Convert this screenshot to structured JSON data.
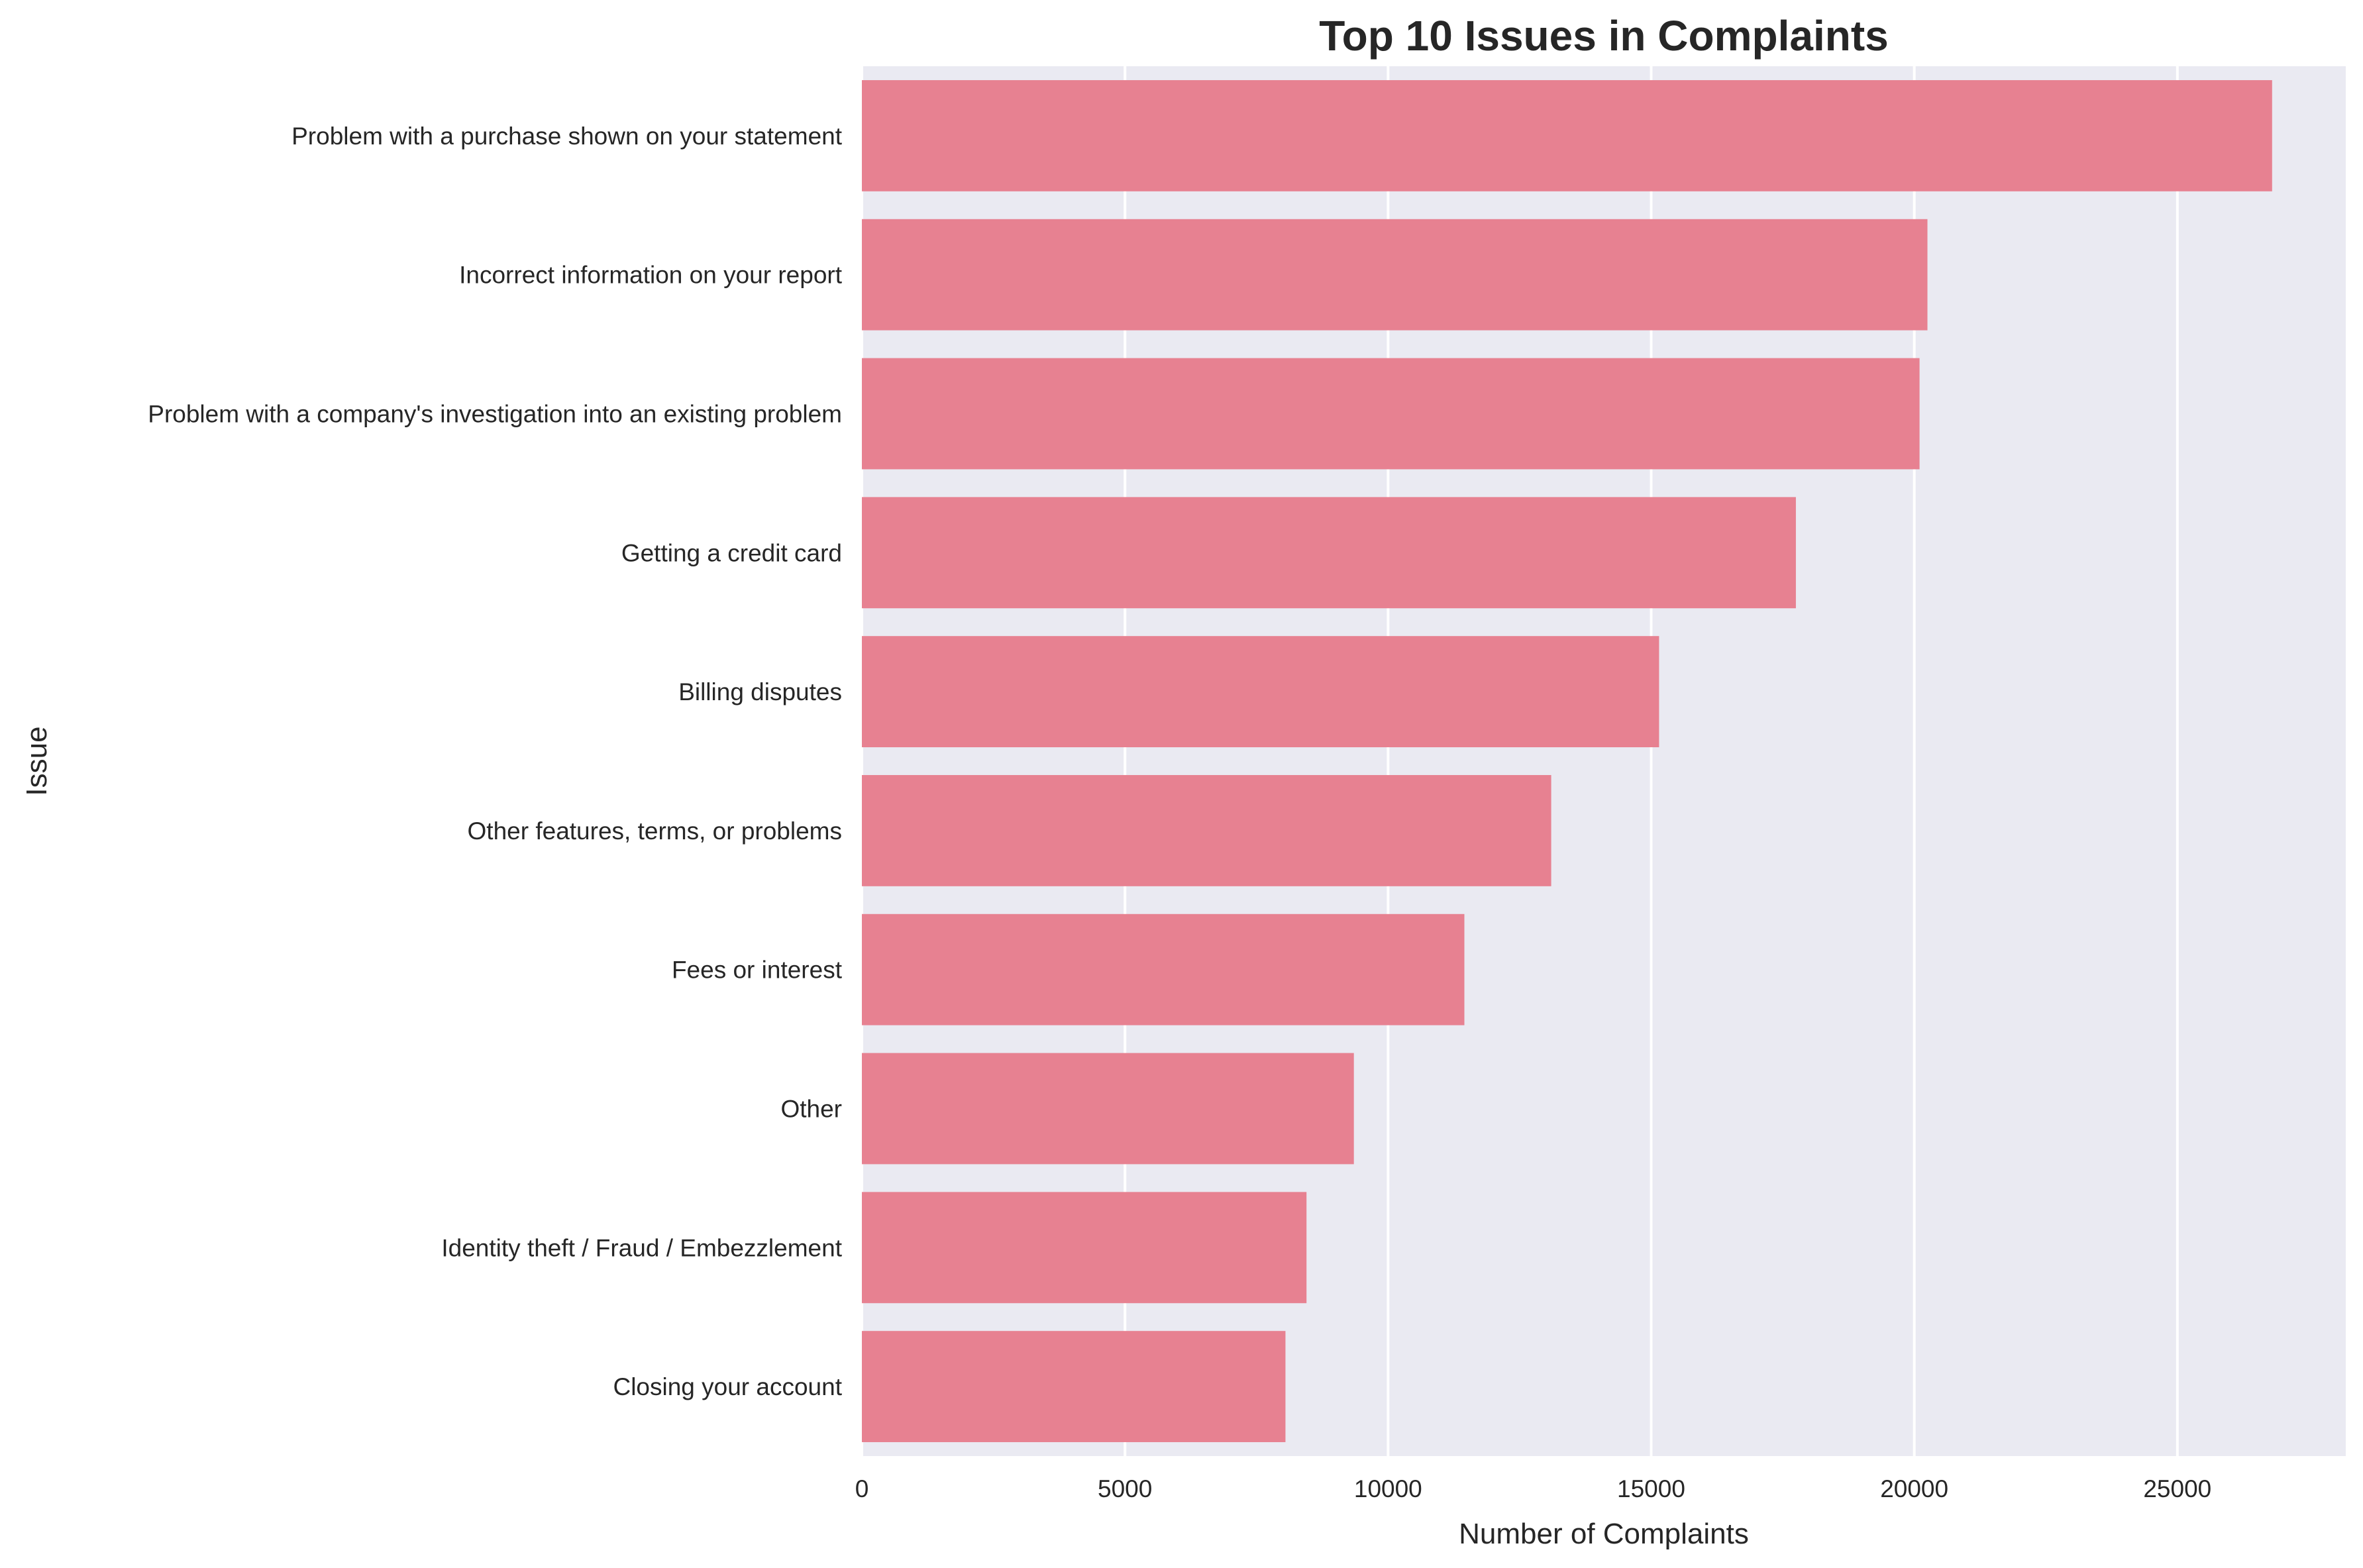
{
  "chart_data": {
    "type": "bar",
    "orientation": "horizontal",
    "title": "Top 10 Issues in Complaints",
    "xlabel": "Number of Complaints",
    "ylabel": "Issue",
    "categories": [
      "Problem with a purchase shown on your statement",
      "Incorrect information on your report",
      "Problem with a company's investigation into an existing problem",
      "Getting a credit card",
      "Billing disputes",
      "Other features, terms, or problems",
      "Fees or interest",
      "Other",
      "Identity theft / Fraud / Embezzlement",
      "Closing your account"
    ],
    "values": [
      26800,
      20250,
      20100,
      17750,
      15150,
      13100,
      11450,
      9350,
      8450,
      8050
    ],
    "xlim": [
      0,
      28200
    ],
    "xticks": [
      0,
      5000,
      10000,
      15000,
      20000,
      25000
    ],
    "grid": true,
    "legend": "none",
    "colors": {
      "bar": "#e78191",
      "plot_background": "#eaeaf2",
      "grid": "#ffffff",
      "text": "#262626"
    }
  }
}
